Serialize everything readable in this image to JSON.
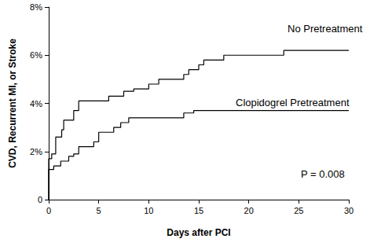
{
  "chart_data": {
    "type": "step",
    "x_label": "Days after PCI",
    "y_label": "CVD, Recurrent MI, or Stroke",
    "annotations": [
      "P = 0.008"
    ],
    "series": [
      {
        "name": "No Pretreatment",
        "color": "#000000",
        "x": [
          0,
          0,
          0.3,
          0.7,
          1.3,
          1.5,
          2.5,
          3.0,
          6.0,
          7.5,
          8.5,
          10.0,
          11.0,
          13.5,
          14.0,
          15.0,
          15.5,
          17.5,
          23.5,
          30
        ],
        "values": [
          0,
          1.7,
          1.9,
          2.6,
          2.9,
          3.3,
          3.7,
          4.1,
          4.3,
          4.5,
          4.6,
          4.8,
          5.0,
          5.2,
          5.4,
          5.6,
          5.8,
          6.0,
          6.2,
          6.2
        ]
      },
      {
        "name": "Clopidogrel Pretreatment",
        "color": "#000000",
        "x": [
          0,
          0,
          0.5,
          1.2,
          2.0,
          2.5,
          3.0,
          4.5,
          5.0,
          6.5,
          7.2,
          8.0,
          13.5,
          14.5,
          30
        ],
        "values": [
          0,
          1.25,
          1.4,
          1.6,
          1.8,
          1.9,
          2.2,
          2.4,
          2.8,
          3.0,
          3.2,
          3.4,
          3.6,
          3.7,
          3.7
        ]
      }
    ],
    "xlim": [
      0,
      30
    ],
    "xticks": [
      0,
      5,
      10,
      15,
      20,
      25,
      30
    ],
    "ylim": [
      0,
      8
    ],
    "yticks": [
      0,
      {
        "value": 2,
        "label": "2%"
      },
      {
        "value": 4,
        "label": "4%"
      },
      {
        "value": 6,
        "label": "6%"
      },
      {
        "value": 8,
        "label": "8%"
      }
    ],
    "grid": false
  }
}
